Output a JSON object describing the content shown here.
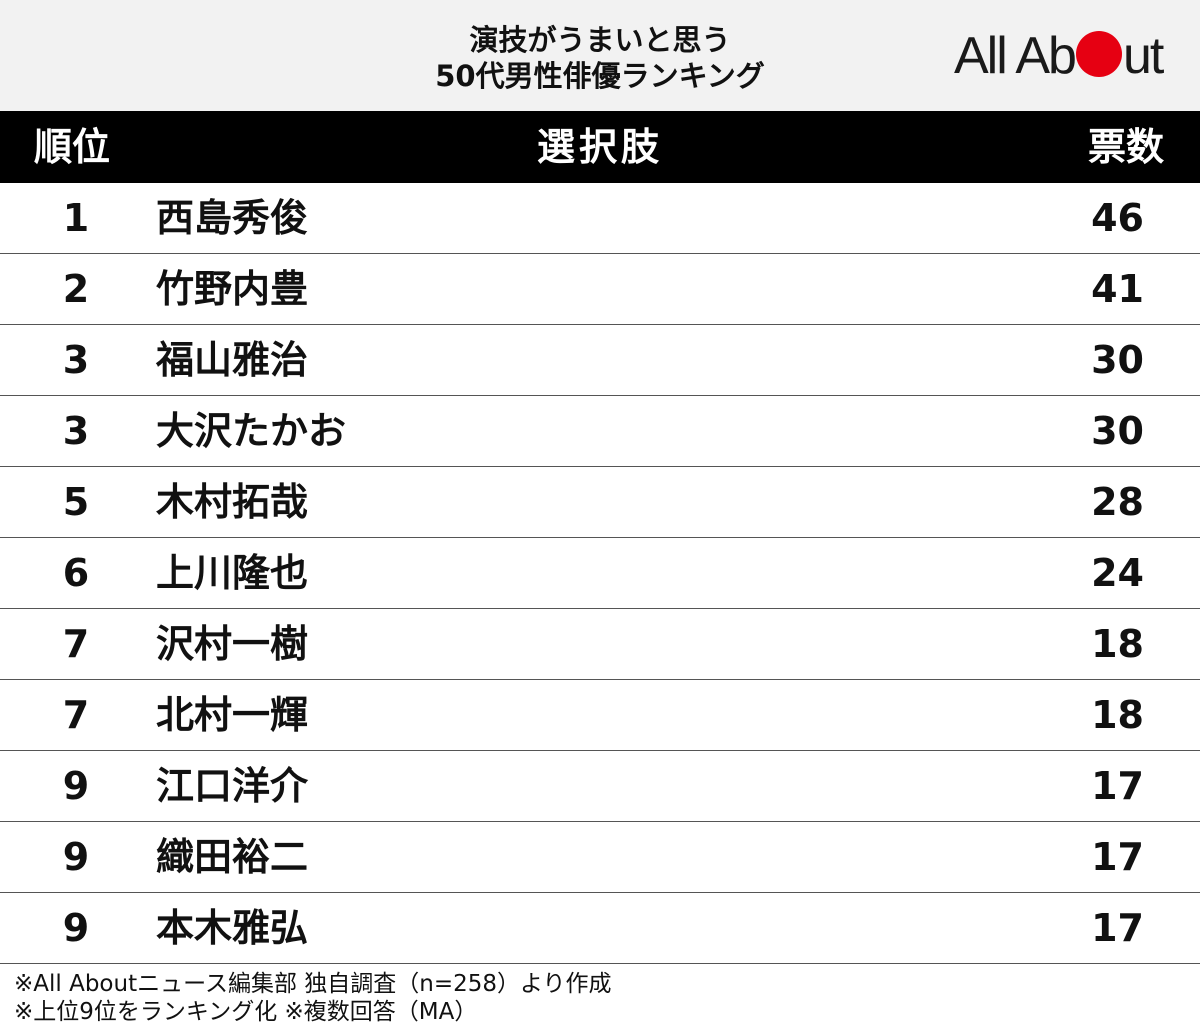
{
  "title": {
    "line1": "演技がうまいと思う",
    "line2": "50代男性俳優ランキング"
  },
  "logo": {
    "pre": "All Ab",
    "post": "ut"
  },
  "columns": {
    "rank": "順位",
    "name": "選択肢",
    "votes": "票数"
  },
  "rows": [
    {
      "rank": "1",
      "name": "西島秀俊",
      "votes": "46"
    },
    {
      "rank": "2",
      "name": "竹野内豊",
      "votes": "41"
    },
    {
      "rank": "3",
      "name": "福山雅治",
      "votes": "30"
    },
    {
      "rank": "3",
      "name": "大沢たかお",
      "votes": "30"
    },
    {
      "rank": "5",
      "name": "木村拓哉",
      "votes": "28"
    },
    {
      "rank": "6",
      "name": "上川隆也",
      "votes": "24"
    },
    {
      "rank": "7",
      "name": "沢村一樹",
      "votes": "18"
    },
    {
      "rank": "7",
      "name": "北村一輝",
      "votes": "18"
    },
    {
      "rank": "9",
      "name": "江口洋介",
      "votes": "17"
    },
    {
      "rank": "9",
      "name": "織田裕二",
      "votes": "17"
    },
    {
      "rank": "9",
      "name": "本木雅弘",
      "votes": "17"
    }
  ],
  "footer": {
    "line1": "※All Aboutニュース編集部 独自調査（n=258）より作成",
    "line2": "※上位9位をランキング化 ※複数回答（MA）"
  },
  "colors": {
    "accent": "#e60012",
    "header_bg": "#000000",
    "title_bg": "#f2f2f2"
  }
}
